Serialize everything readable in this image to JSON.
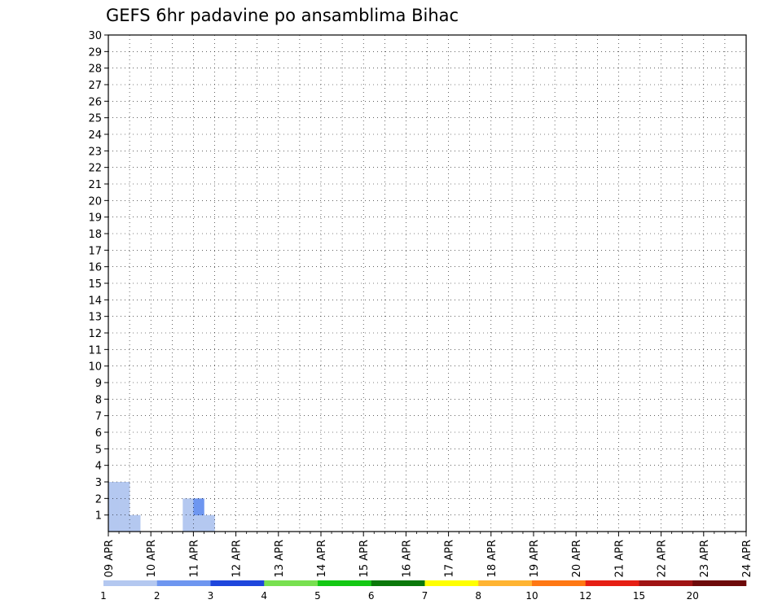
{
  "chart_data": {
    "type": "heatmap",
    "title": "GEFS 6hr padavine po ansamblima Bihac",
    "xlabel": "",
    "ylabel": "",
    "x_ticks": [
      "09 APR",
      "10 APR",
      "11 APR",
      "12 APR",
      "13 APR",
      "14 APR",
      "15 APR",
      "16 APR",
      "17 APR",
      "18 APR",
      "19 APR",
      "20 APR",
      "21 APR",
      "22 APR",
      "23 APR",
      "24 APR"
    ],
    "x_range": [
      "09 APR",
      "24 APR"
    ],
    "steps_per_day": 4,
    "y_ticks": [
      1,
      2,
      3,
      4,
      5,
      6,
      7,
      8,
      9,
      10,
      11,
      12,
      13,
      14,
      15,
      16,
      17,
      18,
      19,
      20,
      21,
      22,
      23,
      24,
      25,
      26,
      27,
      28,
      29,
      30
    ],
    "y_range": [
      0,
      30
    ],
    "grid": true,
    "legend": {
      "position": "bottom",
      "levels": [
        1,
        2,
        3,
        4,
        5,
        6,
        7,
        8,
        10,
        12,
        15,
        20
      ],
      "colors": [
        "#b4c8f0",
        "#6e96f0",
        "#1e46dc",
        "#78e050",
        "#14c814",
        "#0a780a",
        "#ffff00",
        "#ffb432",
        "#ff7814",
        "#e61e14",
        "#a01414",
        "#6e0a0a"
      ]
    },
    "cell_rule": "cell value = index of color class (0..12) for member (row) at 6h step (column, from 09 APR 00Z)",
    "cells": [
      [
        1,
        1,
        1,
        0,
        0,
        0,
        0,
        1,
        1,
        1,
        0,
        0,
        0,
        0,
        0,
        0,
        0,
        0,
        0,
        0,
        0,
        0,
        0,
        0,
        0,
        0,
        0,
        0,
        0,
        0,
        0,
        0,
        0,
        0,
        0,
        0,
        0,
        0,
        0,
        0,
        0,
        0,
        0,
        0,
        0,
        0,
        0,
        0,
        0,
        0,
        0,
        0,
        0,
        0,
        0,
        0,
        0,
        0,
        0,
        0,
        0
      ],
      [
        1,
        1,
        0,
        0,
        0,
        0,
        0,
        1,
        2,
        0,
        0,
        0,
        0,
        0,
        0,
        0,
        0,
        0,
        0,
        0,
        0,
        0,
        0,
        0,
        0,
        0,
        0,
        0,
        0,
        0,
        0,
        0,
        0,
        0,
        0,
        0,
        0,
        0,
        0,
        0,
        0,
        0,
        0,
        0,
        0,
        0,
        0,
        0,
        0,
        0,
        0,
        0,
        0,
        0,
        0,
        0,
        0,
        0,
        0,
        0,
        0
      ],
      [
        1,
        1,
        0,
        0,
        0,
        0,
        0,
        0,
        0,
        0,
        0,
        0,
        0,
        0,
        0,
        0,
        0,
        0,
        0,
        0,
        0,
        0,
        0,
        0,
        0,
        0,
        0,
        0,
        0,
        0,
        0,
        0,
        0,
        0,
        0,
        0,
        0,
        0,
        0,
        0,
        0,
        0,
        0,
        0,
        0,
        0,
        0,
        0,
        0,
        0,
        0,
        0,
        0,
        0,
        0,
        0,
        0,
        0,
        0,
        0,
        0
      ],
      [
        0,
        0,
        0,
        0,
        0,
        0,
        0,
        0,
        0,
        0,
        0,
        0,
        0,
        0,
        0,
        0,
        0,
        0,
        0,
        0,
        0,
        0,
        0,
        0,
        0,
        0,
        0,
        0,
        0,
        0,
        0,
        0,
        0,
        0,
        0,
        0,
        0,
        0,
        0,
        0,
        0,
        0,
        0,
        0,
        0,
        0,
        0,
        0,
        0,
        0,
        0,
        0,
        0,
        0,
        0,
        0,
        0,
        0,
        0,
        0,
        0
      ]
    ],
    "plot_colors": {
      "grid": "#000000",
      "frame": "#000000",
      "background": "#ffffff"
    }
  }
}
